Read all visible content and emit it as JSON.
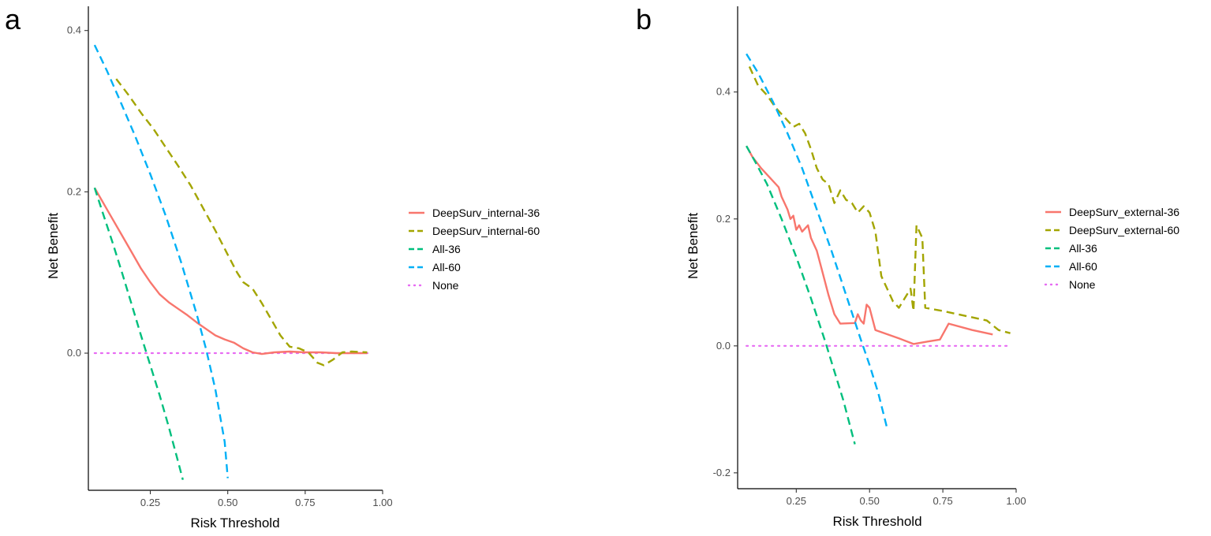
{
  "chart_data": [
    {
      "panel_label": "a",
      "type": "line",
      "title": "",
      "xlabel": "Risk Threshold",
      "ylabel": "Net Benefit",
      "xlim": [
        0.05,
        1.0
      ],
      "ylim": [
        -0.17,
        0.43
      ],
      "x_ticks": [
        0.25,
        0.5,
        0.75,
        1.0
      ],
      "x_tick_labels": [
        "0.25",
        "0.50",
        "0.75",
        "1.00"
      ],
      "y_ticks": [
        0.0,
        0.2,
        0.4
      ],
      "y_tick_labels": [
        "0.0",
        "0.2",
        "0.4"
      ],
      "grid": false,
      "legend_position": "right",
      "series": [
        {
          "name": "DeepSurv_internal-36",
          "color": "#F8766D",
          "style": "solid",
          "points": [
            [
              0.07,
              0.205
            ],
            [
              0.1,
              0.185
            ],
            [
              0.13,
              0.165
            ],
            [
              0.16,
              0.145
            ],
            [
              0.19,
              0.125
            ],
            [
              0.22,
              0.105
            ],
            [
              0.25,
              0.088
            ],
            [
              0.28,
              0.073
            ],
            [
              0.31,
              0.063
            ],
            [
              0.34,
              0.055
            ],
            [
              0.37,
              0.047
            ],
            [
              0.4,
              0.038
            ],
            [
              0.43,
              0.03
            ],
            [
              0.46,
              0.022
            ],
            [
              0.49,
              0.017
            ],
            [
              0.52,
              0.013
            ],
            [
              0.55,
              0.006
            ],
            [
              0.58,
              0.001
            ],
            [
              0.61,
              -0.001
            ],
            [
              0.65,
              0.001
            ],
            [
              0.7,
              0.002
            ],
            [
              0.75,
              0.001
            ],
            [
              0.8,
              0.001
            ],
            [
              0.85,
              0.0
            ],
            [
              0.9,
              0.0
            ],
            [
              0.95,
              0.0
            ]
          ]
        },
        {
          "name": "DeepSurv_internal-60",
          "color": "#A3A500",
          "style": "dashed",
          "points": [
            [
              0.14,
              0.34
            ],
            [
              0.18,
              0.32
            ],
            [
              0.22,
              0.298
            ],
            [
              0.26,
              0.278
            ],
            [
              0.3,
              0.255
            ],
            [
              0.34,
              0.232
            ],
            [
              0.38,
              0.208
            ],
            [
              0.42,
              0.18
            ],
            [
              0.46,
              0.152
            ],
            [
              0.5,
              0.122
            ],
            [
              0.53,
              0.1
            ],
            [
              0.55,
              0.088
            ],
            [
              0.58,
              0.08
            ],
            [
              0.61,
              0.062
            ],
            [
              0.64,
              0.042
            ],
            [
              0.67,
              0.022
            ],
            [
              0.7,
              0.008
            ],
            [
              0.73,
              0.006
            ],
            [
              0.76,
              0.001
            ],
            [
              0.79,
              -0.012
            ],
            [
              0.81,
              -0.015
            ],
            [
              0.84,
              -0.008
            ],
            [
              0.87,
              0.001
            ],
            [
              0.9,
              0.002
            ],
            [
              0.95,
              0.001
            ]
          ]
        },
        {
          "name": "All-36",
          "color": "#00BF7D",
          "style": "dashed",
          "points": [
            [
              0.07,
              0.205
            ],
            [
              0.1,
              0.17
            ],
            [
              0.13,
              0.135
            ],
            [
              0.16,
              0.098
            ],
            [
              0.19,
              0.06
            ],
            [
              0.22,
              0.022
            ],
            [
              0.25,
              -0.015
            ],
            [
              0.28,
              -0.052
            ],
            [
              0.31,
              -0.092
            ],
            [
              0.34,
              -0.135
            ],
            [
              0.355,
              -0.157
            ]
          ]
        },
        {
          "name": "All-60",
          "color": "#00B0F6",
          "style": "dashed",
          "points": [
            [
              0.07,
              0.382
            ],
            [
              0.11,
              0.35
            ],
            [
              0.15,
              0.315
            ],
            [
              0.2,
              0.27
            ],
            [
              0.25,
              0.222
            ],
            [
              0.3,
              0.17
            ],
            [
              0.35,
              0.112
            ],
            [
              0.4,
              0.048
            ],
            [
              0.43,
              0.005
            ],
            [
              0.46,
              -0.045
            ],
            [
              0.49,
              -0.11
            ],
            [
              0.5,
              -0.155
            ]
          ]
        },
        {
          "name": "None",
          "color": "#E76BF3",
          "style": "dotted",
          "points": [
            [
              0.07,
              0.0
            ],
            [
              0.96,
              0.0
            ]
          ]
        }
      ]
    },
    {
      "panel_label": "b",
      "type": "line",
      "title": "",
      "xlabel": "Risk Threshold",
      "ylabel": "Net Benefit",
      "xlim": [
        0.05,
        1.0
      ],
      "ylim": [
        -0.225,
        0.535
      ],
      "x_ticks": [
        0.25,
        0.5,
        0.75,
        1.0
      ],
      "x_tick_labels": [
        "0.25",
        "0.50",
        "0.75",
        "1.00"
      ],
      "y_ticks": [
        -0.2,
        0.0,
        0.2,
        0.4
      ],
      "y_tick_labels": [
        "-0.2",
        "0.0",
        "0.2",
        "0.4"
      ],
      "grid": false,
      "legend_position": "right",
      "series": [
        {
          "name": "DeepSurv_external-36",
          "color": "#F8766D",
          "style": "solid",
          "points": [
            [
              0.08,
              0.315
            ],
            [
              0.1,
              0.298
            ],
            [
              0.13,
              0.28
            ],
            [
              0.16,
              0.265
            ],
            [
              0.19,
              0.25
            ],
            [
              0.2,
              0.235
            ],
            [
              0.22,
              0.215
            ],
            [
              0.23,
              0.2
            ],
            [
              0.24,
              0.205
            ],
            [
              0.25,
              0.183
            ],
            [
              0.26,
              0.19
            ],
            [
              0.27,
              0.18
            ],
            [
              0.29,
              0.19
            ],
            [
              0.3,
              0.17
            ],
            [
              0.32,
              0.15
            ],
            [
              0.34,
              0.115
            ],
            [
              0.36,
              0.08
            ],
            [
              0.38,
              0.05
            ],
            [
              0.4,
              0.035
            ],
            [
              0.45,
              0.036
            ],
            [
              0.46,
              0.05
            ],
            [
              0.47,
              0.04
            ],
            [
              0.48,
              0.035
            ],
            [
              0.49,
              0.065
            ],
            [
              0.5,
              0.06
            ],
            [
              0.52,
              0.025
            ],
            [
              0.6,
              0.012
            ],
            [
              0.65,
              0.003
            ],
            [
              0.7,
              0.007
            ],
            [
              0.74,
              0.01
            ],
            [
              0.77,
              0.035
            ],
            [
              0.85,
              0.025
            ],
            [
              0.92,
              0.018
            ]
          ]
        },
        {
          "name": "DeepSurv_external-60",
          "color": "#A3A500",
          "style": "dashed",
          "points": [
            [
              0.09,
              0.44
            ],
            [
              0.12,
              0.41
            ],
            [
              0.15,
              0.395
            ],
            [
              0.18,
              0.375
            ],
            [
              0.21,
              0.36
            ],
            [
              0.24,
              0.345
            ],
            [
              0.26,
              0.35
            ],
            [
              0.28,
              0.335
            ],
            [
              0.3,
              0.31
            ],
            [
              0.32,
              0.28
            ],
            [
              0.34,
              0.262
            ],
            [
              0.36,
              0.255
            ],
            [
              0.37,
              0.24
            ],
            [
              0.38,
              0.225
            ],
            [
              0.4,
              0.245
            ],
            [
              0.42,
              0.23
            ],
            [
              0.44,
              0.225
            ],
            [
              0.46,
              0.21
            ],
            [
              0.48,
              0.22
            ],
            [
              0.5,
              0.21
            ],
            [
              0.52,
              0.18
            ],
            [
              0.54,
              0.11
            ],
            [
              0.56,
              0.09
            ],
            [
              0.58,
              0.07
            ],
            [
              0.6,
              0.06
            ],
            [
              0.62,
              0.075
            ],
            [
              0.64,
              0.09
            ],
            [
              0.65,
              0.055
            ],
            [
              0.66,
              0.19
            ],
            [
              0.67,
              0.18
            ],
            [
              0.68,
              0.17
            ],
            [
              0.69,
              0.06
            ],
            [
              0.75,
              0.055
            ],
            [
              0.8,
              0.05
            ],
            [
              0.85,
              0.045
            ],
            [
              0.9,
              0.04
            ],
            [
              0.94,
              0.025
            ],
            [
              0.98,
              0.02
            ]
          ]
        },
        {
          "name": "All-36",
          "color": "#00BF7D",
          "style": "dashed",
          "points": [
            [
              0.08,
              0.315
            ],
            [
              0.11,
              0.29
            ],
            [
              0.15,
              0.255
            ],
            [
              0.2,
              0.2
            ],
            [
              0.25,
              0.14
            ],
            [
              0.3,
              0.075
            ],
            [
              0.35,
              0.005
            ],
            [
              0.38,
              -0.04
            ],
            [
              0.41,
              -0.085
            ],
            [
              0.43,
              -0.12
            ],
            [
              0.45,
              -0.155
            ]
          ]
        },
        {
          "name": "All-60",
          "color": "#00B0F6",
          "style": "dashed",
          "points": [
            [
              0.08,
              0.46
            ],
            [
              0.12,
              0.43
            ],
            [
              0.17,
              0.385
            ],
            [
              0.22,
              0.335
            ],
            [
              0.27,
              0.28
            ],
            [
              0.32,
              0.215
            ],
            [
              0.37,
              0.15
            ],
            [
              0.42,
              0.08
            ],
            [
              0.47,
              0.01
            ],
            [
              0.5,
              -0.03
            ],
            [
              0.53,
              -0.075
            ],
            [
              0.56,
              -0.13
            ]
          ]
        },
        {
          "name": "None",
          "color": "#E76BF3",
          "style": "dotted",
          "points": [
            [
              0.08,
              0.0
            ],
            [
              0.98,
              0.0
            ]
          ]
        }
      ]
    }
  ]
}
